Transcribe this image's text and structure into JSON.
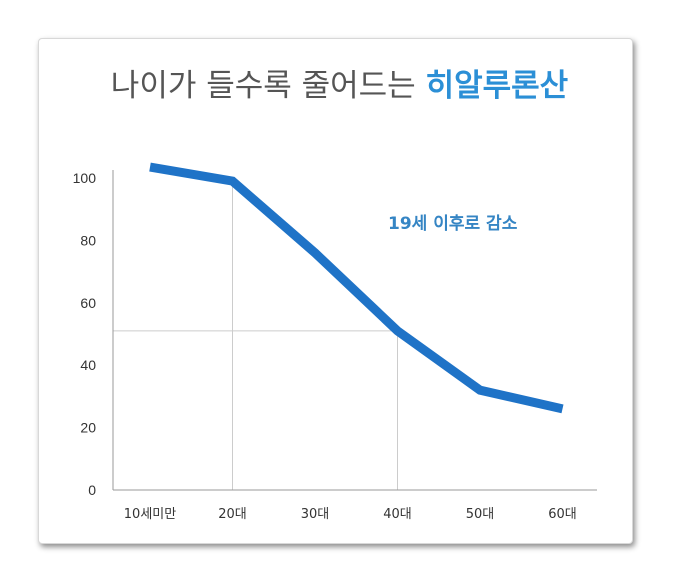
{
  "chart_data": {
    "type": "line",
    "title_prefix": "나이가 들수록 줄어드는",
    "title_highlight": "히알루론산",
    "categories": [
      "10세미만",
      "20대",
      "30대",
      "40대",
      "50대",
      "60대"
    ],
    "values": [
      103.5,
      99,
      76,
      51,
      32,
      26
    ],
    "xlabel": "",
    "ylabel": "",
    "ylim": [
      0,
      100
    ],
    "yticks": [
      "0",
      "20",
      "40",
      "60",
      "80",
      "100"
    ],
    "annotation": "19세 이후로 감소",
    "reference_level": 51,
    "grid": "reference lines only",
    "line_color": "#1f73c7",
    "highlight_color": "#2b8fd6"
  }
}
